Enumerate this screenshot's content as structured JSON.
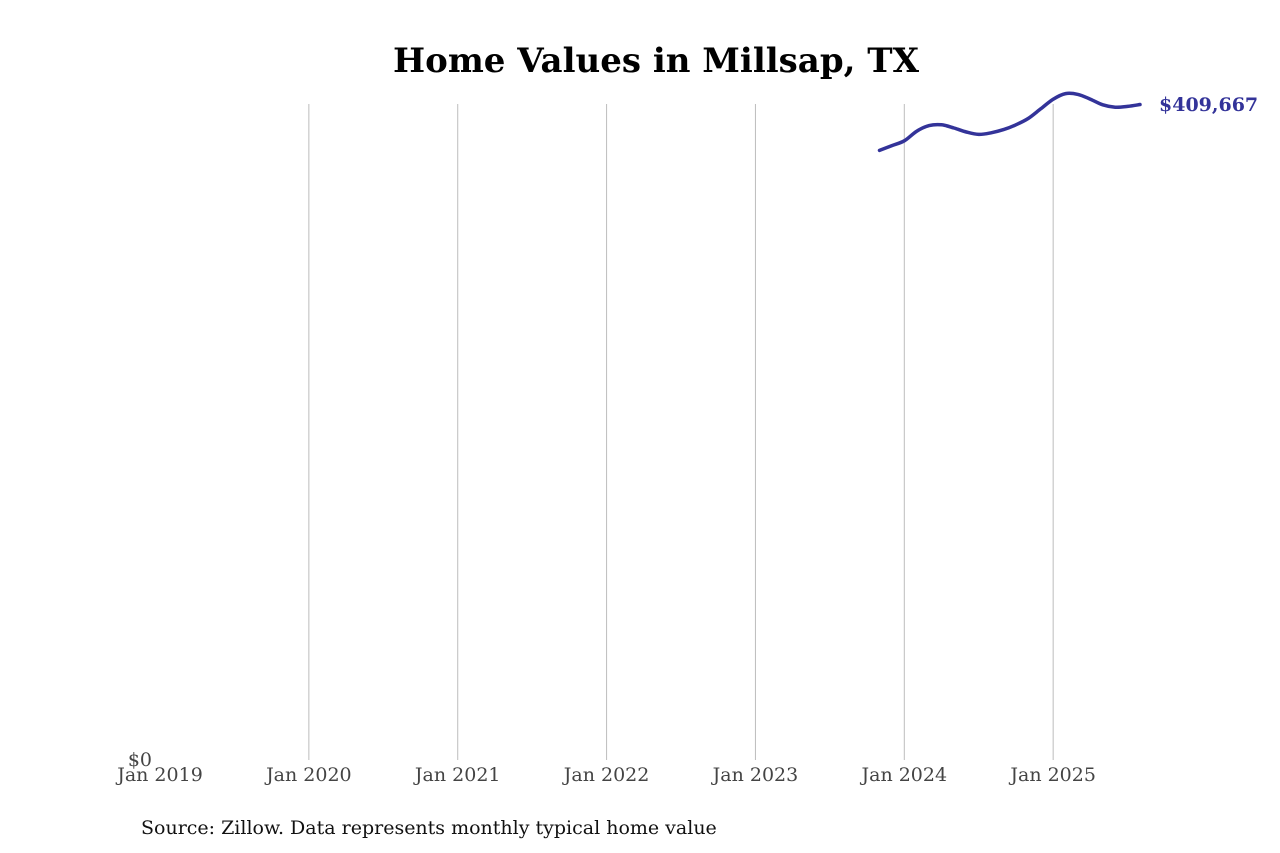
{
  "chart_data": {
    "type": "line",
    "title": "Home Values in Millsap, TX",
    "source_note": "Source: Zillow. Data represents monthly typical home value",
    "x_ticks": [
      "Jan 2019",
      "Jan 2020",
      "Jan 2021",
      "Jan 2022",
      "Jan 2023",
      "Jan 2024",
      "Jan 2025"
    ],
    "y_ticks": [
      "$0"
    ],
    "xlim": [
      "2019-01",
      "2025-08"
    ],
    "ylim": [
      0,
      410000
    ],
    "grid": "vertical",
    "line_color": "#333399",
    "end_label": "$409,667",
    "series": [
      {
        "x": [
          "2023-11",
          "2023-12",
          "2024-01",
          "2024-02",
          "2024-03",
          "2024-04",
          "2024-05",
          "2024-06",
          "2024-07",
          "2024-08",
          "2024-09",
          "2024-10",
          "2024-11",
          "2024-12",
          "2025-01",
          "2025-02",
          "2025-03",
          "2025-04",
          "2025-05",
          "2025-06",
          "2025-07",
          "2025-08"
        ],
        "y": [
          381000,
          384000,
          387000,
          393000,
          396500,
          397000,
          395000,
          392500,
          391000,
          392000,
          394000,
          397000,
          401000,
          407000,
          413000,
          416500,
          416000,
          413000,
          409500,
          408000,
          408500,
          409667
        ]
      }
    ]
  }
}
